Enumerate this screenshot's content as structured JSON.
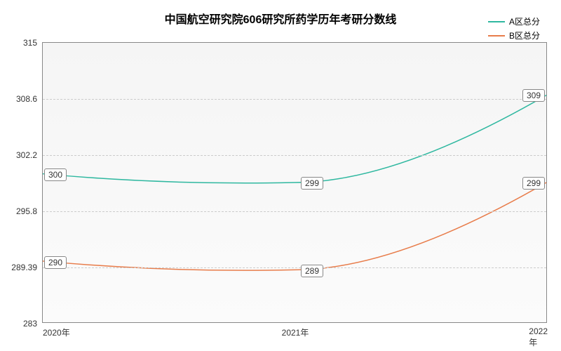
{
  "chart": {
    "type": "line",
    "title": "中国航空研究院606研究所药学历年考研分数线",
    "title_fontsize": 16,
    "title_weight": "bold",
    "background_color": "#ffffff",
    "plot_background": "linear-gradient(#f5f5f5, #fbfbfb)",
    "plot_border_color": "#888888",
    "grid_color": "#cccccc",
    "label_fontsize": 12,
    "x": {
      "categories": [
        "2020年",
        "2021年",
        "2022年"
      ]
    },
    "y": {
      "min": 283,
      "max": 315,
      "ticks": [
        283,
        289.39,
        295.8,
        302.2,
        308.6,
        315
      ]
    },
    "series": [
      {
        "name": "A区总分",
        "color": "#2fb8a0",
        "line_width": 1.5,
        "values": [
          300,
          299,
          309
        ],
        "smooth": true
      },
      {
        "name": "B区总分",
        "color": "#e87c4a",
        "line_width": 1.5,
        "values": [
          290,
          289,
          299
        ],
        "smooth": true
      }
    ],
    "legend": {
      "position": "top-right",
      "fontsize": 12
    },
    "data_label": {
      "fontsize": 12,
      "text_color": "#333333",
      "bg_color": "#ffffff",
      "border_color": "#888888"
    }
  }
}
